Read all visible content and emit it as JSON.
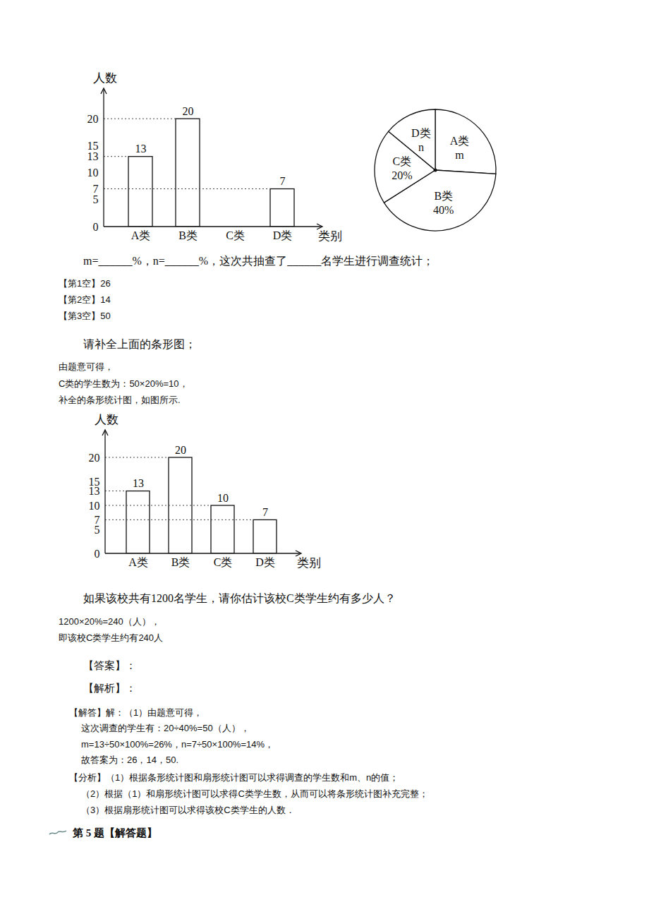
{
  "chart_data": [
    {
      "type": "bar",
      "categories": [
        "A类",
        "B类",
        "C类",
        "D类"
      ],
      "values": [
        13,
        20,
        null,
        7
      ],
      "ylim": [
        0,
        25
      ],
      "yticks": [
        0,
        5,
        7,
        10,
        13,
        15,
        20
      ],
      "xlabel": "类别",
      "ylabel": "人数",
      "data_labels": true,
      "color": "#ffffff"
    },
    {
      "type": "pie",
      "categories": [
        "A类",
        "B类",
        "C类",
        "D类"
      ],
      "values": [
        26,
        40,
        20,
        14
      ],
      "value_labels": [
        "m",
        "40%",
        "20%",
        "n"
      ],
      "data_labels": true,
      "color": "#ffffff"
    },
    {
      "type": "bar",
      "categories": [
        "A类",
        "B类",
        "C类",
        "D类"
      ],
      "values": [
        13,
        20,
        10,
        7
      ],
      "ylim": [
        0,
        25
      ],
      "yticks": [
        0,
        5,
        7,
        10,
        13,
        15,
        20
      ],
      "xlabel": "类别",
      "ylabel": "人数",
      "data_labels": true,
      "color": "#ffffff"
    }
  ],
  "document": {
    "question1": "m=______%，n=______%，这次共抽查了______名学生进行调查统计；",
    "answers1": [
      "【第1空】26",
      "【第2空】14",
      "【第3空】50"
    ],
    "question2": "请补全上面的条形图；",
    "solution2": [
      "由题意可得，",
      "C类的学生数为：50×20%=10，",
      "补全的条形统计图，如图所示."
    ],
    "question3": "如果该校共有1200名学生，请你估计该校C类学生约有多少人？",
    "solution3": [
      "1200×20%=240（人），",
      "即该校C类学生约有240人"
    ],
    "answer_label": "【答案】：",
    "analysis_label": "【解析】：",
    "analysis": [
      "【解答】解：（1）由题意可得，",
      "这次调查的学生有：20÷40%=50（人），",
      "m=13÷50×100%=26%，n=7÷50×100%=14%，",
      "故答案为：26，14，50.",
      "【分析】（1）根据条形统计图和扇形统计图可以求得调查的学生数和m、n的值；",
      "（2）根据（1）和扇形统计图可以求得C类学生数，从而可以将条形统计图补充完整；",
      "（3）根据扇形统计图可以求得该校C类学生的人数．"
    ],
    "next_question": "第 5 题【解答题】"
  }
}
